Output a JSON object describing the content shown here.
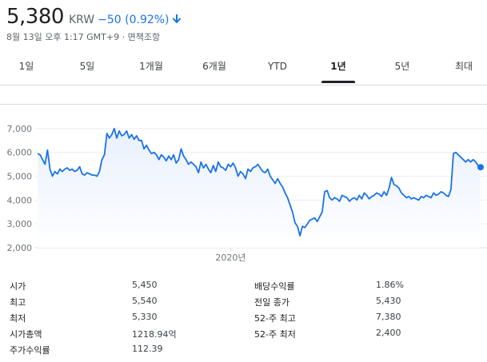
{
  "header": {
    "price": "5,380",
    "currency": "KRW",
    "change": "−50 (0.92%)",
    "meta": "8월 13일 오후 1:17 GMT+9 · 면책조항",
    "change_color": "#1a73e8"
  },
  "tabs": [
    {
      "label": "1일"
    },
    {
      "label": "5일"
    },
    {
      "label": "1개월"
    },
    {
      "label": "6개월"
    },
    {
      "label": "YTD"
    },
    {
      "label": "1년",
      "active": true
    },
    {
      "label": "5년"
    },
    {
      "label": "최대"
    }
  ],
  "chart_data": {
    "type": "area",
    "ylim": [
      2000,
      7500
    ],
    "y_ticks": [
      2000,
      3000,
      4000,
      5000,
      6000,
      7000
    ],
    "y_tick_labels": [
      "2,000",
      "3,000",
      "4,000",
      "5,000",
      "6,000",
      "7,000"
    ],
    "x_label": "2020년",
    "x_label_index": 78,
    "line_color": "#1a73e8",
    "fill_color": "#e8f0fe",
    "values": [
      5950,
      5900,
      5700,
      5500,
      6100,
      5300,
      5000,
      5200,
      5100,
      5300,
      5200,
      5300,
      5350,
      5250,
      5300,
      5200,
      5250,
      5400,
      5100,
      5050,
      5150,
      5100,
      5050,
      5050,
      5000,
      5200,
      5700,
      5900,
      6800,
      6600,
      6750,
      7000,
      6600,
      6900,
      6700,
      6750,
      6900,
      6600,
      6750,
      6550,
      6700,
      6500,
      6500,
      6150,
      6300,
      6100,
      5950,
      6000,
      5900,
      5700,
      5900,
      5800,
      5650,
      5850,
      5700,
      5900,
      5550,
      5700,
      6150,
      5850,
      5700,
      5500,
      5600,
      5500,
      5400,
      5150,
      5600,
      5350,
      5500,
      5300,
      5150,
      5450,
      5200,
      5600,
      5400,
      5350,
      5250,
      5500,
      5400,
      5550,
      5350,
      5000,
      5200,
      5100,
      4900,
      5300,
      5200,
      5350,
      5400,
      5500,
      5350,
      5200,
      5150,
      5300,
      5000,
      4850,
      4700,
      4900,
      4700,
      4550,
      4300,
      4100,
      3800,
      3500,
      3050,
      2900,
      2500,
      2900,
      2850,
      3000,
      3150,
      3200,
      3250,
      3100,
      3300,
      3500,
      4350,
      4400,
      4100,
      4000,
      4100,
      4050,
      3950,
      4200,
      4150,
      4100,
      3950,
      4050,
      4100,
      4000,
      4200,
      4050,
      4300,
      4200,
      4050,
      4150,
      4200,
      4300,
      4250,
      4150,
      4350,
      4200,
      4500,
      4950,
      4650,
      4600,
      4500,
      4300,
      4200,
      4100,
      4150,
      4050,
      4100,
      4050,
      4000,
      4150,
      4100,
      4200,
      4150,
      4100,
      4300,
      4200,
      4250,
      4350,
      4300,
      4200,
      4150,
      4450,
      5950,
      6000,
      5900,
      5800,
      5700,
      5600,
      5700,
      5600,
      5700,
      5600,
      5450,
      5380
    ]
  },
  "stats": [
    {
      "label": "시가",
      "value": "5,450"
    },
    {
      "label": "최고",
      "value": "5,540"
    },
    {
      "label": "최저",
      "value": "5,330"
    },
    {
      "label": "시가총액",
      "value": "1218.94억"
    },
    {
      "label": "주가수익률",
      "value": "112.39"
    },
    {
      "label": "배당수익률",
      "value": "1.86%"
    },
    {
      "label": "전일 종가",
      "value": "5,430"
    },
    {
      "label": "52-주 최고",
      "value": "7,380"
    },
    {
      "label": "52-주 최저",
      "value": "2,400"
    }
  ]
}
